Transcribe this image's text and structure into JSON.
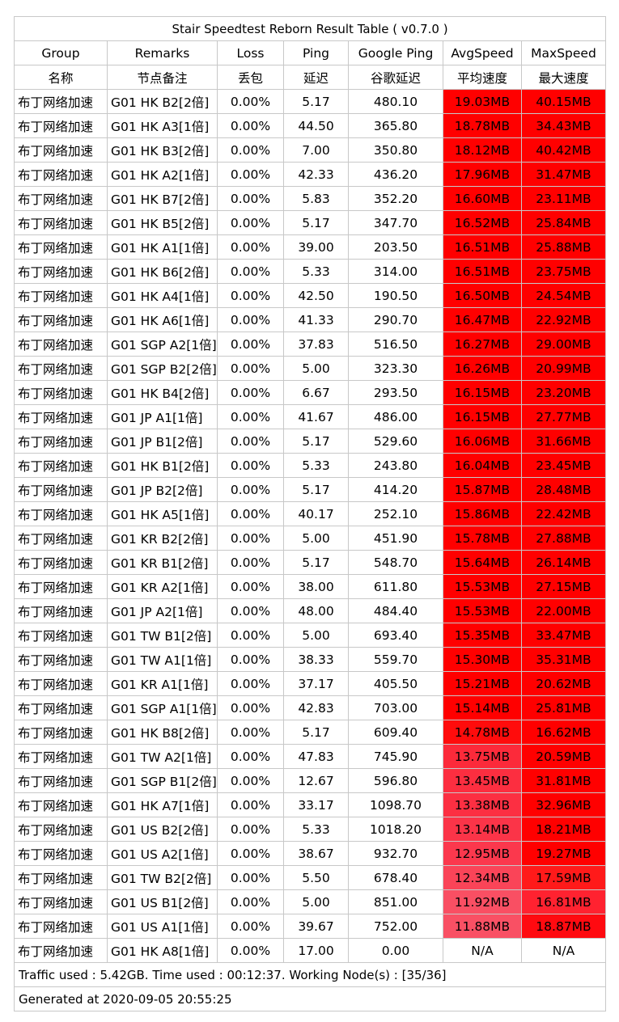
{
  "title": "Stair Speedtest Reborn Result Table ( v0.7.0 )",
  "headers_en": [
    "Group",
    "Remarks",
    "Loss",
    "Ping",
    "Google Ping",
    "AvgSpeed",
    "MaxSpeed"
  ],
  "headers_cn": [
    "名称",
    "节点备注",
    "丢包",
    "延迟",
    "谷歌延迟",
    "平均速度",
    "最大速度"
  ],
  "rows": [
    {
      "group": "布丁网络加速",
      "remarks": "G01 HK B2[2倍]",
      "loss": "0.00%",
      "ping": "5.17",
      "gping": "480.10",
      "avg": "19.03MB",
      "max": "40.15MB",
      "avg_color": "#ff0000",
      "max_color": "#ff0000"
    },
    {
      "group": "布丁网络加速",
      "remarks": "G01 HK A3[1倍]",
      "loss": "0.00%",
      "ping": "44.50",
      "gping": "365.80",
      "avg": "18.78MB",
      "max": "34.43MB",
      "avg_color": "#ff0000",
      "max_color": "#ff0000"
    },
    {
      "group": "布丁网络加速",
      "remarks": "G01 HK B3[2倍]",
      "loss": "0.00%",
      "ping": "7.00",
      "gping": "350.80",
      "avg": "18.12MB",
      "max": "40.42MB",
      "avg_color": "#ff0000",
      "max_color": "#ff0000"
    },
    {
      "group": "布丁网络加速",
      "remarks": "G01 HK A2[1倍]",
      "loss": "0.00%",
      "ping": "42.33",
      "gping": "436.20",
      "avg": "17.96MB",
      "max": "31.47MB",
      "avg_color": "#ff0000",
      "max_color": "#ff0000"
    },
    {
      "group": "布丁网络加速",
      "remarks": "G01 HK B7[2倍]",
      "loss": "0.00%",
      "ping": "5.83",
      "gping": "352.20",
      "avg": "16.60MB",
      "max": "23.11MB",
      "avg_color": "#ff0000",
      "max_color": "#ff0000"
    },
    {
      "group": "布丁网络加速",
      "remarks": "G01 HK B5[2倍]",
      "loss": "0.00%",
      "ping": "5.17",
      "gping": "347.70",
      "avg": "16.52MB",
      "max": "25.84MB",
      "avg_color": "#ff0000",
      "max_color": "#ff0000"
    },
    {
      "group": "布丁网络加速",
      "remarks": "G01 HK A1[1倍]",
      "loss": "0.00%",
      "ping": "39.00",
      "gping": "203.50",
      "avg": "16.51MB",
      "max": "25.88MB",
      "avg_color": "#ff0000",
      "max_color": "#ff0000"
    },
    {
      "group": "布丁网络加速",
      "remarks": "G01 HK B6[2倍]",
      "loss": "0.00%",
      "ping": "5.33",
      "gping": "314.00",
      "avg": "16.51MB",
      "max": "23.75MB",
      "avg_color": "#ff0000",
      "max_color": "#ff0000"
    },
    {
      "group": "布丁网络加速",
      "remarks": "G01 HK A4[1倍]",
      "loss": "0.00%",
      "ping": "42.50",
      "gping": "190.50",
      "avg": "16.50MB",
      "max": "24.54MB",
      "avg_color": "#ff0000",
      "max_color": "#ff0000"
    },
    {
      "group": "布丁网络加速",
      "remarks": "G01 HK A6[1倍]",
      "loss": "0.00%",
      "ping": "41.33",
      "gping": "290.70",
      "avg": "16.47MB",
      "max": "22.92MB",
      "avg_color": "#ff0000",
      "max_color": "#ff0000"
    },
    {
      "group": "布丁网络加速",
      "remarks": "G01 SGP A2[1倍]",
      "loss": "0.00%",
      "ping": "37.83",
      "gping": "516.50",
      "avg": "16.27MB",
      "max": "29.00MB",
      "avg_color": "#ff0000",
      "max_color": "#ff0000"
    },
    {
      "group": "布丁网络加速",
      "remarks": "G01 SGP B2[2倍]",
      "loss": "0.00%",
      "ping": "5.00",
      "gping": "323.30",
      "avg": "16.26MB",
      "max": "20.99MB",
      "avg_color": "#ff0000",
      "max_color": "#ff0000"
    },
    {
      "group": "布丁网络加速",
      "remarks": "G01 HK B4[2倍]",
      "loss": "0.00%",
      "ping": "6.67",
      "gping": "293.50",
      "avg": "16.15MB",
      "max": "23.20MB",
      "avg_color": "#ff0000",
      "max_color": "#ff0000"
    },
    {
      "group": "布丁网络加速",
      "remarks": "G01 JP A1[1倍]",
      "loss": "0.00%",
      "ping": "41.67",
      "gping": "486.00",
      "avg": "16.15MB",
      "max": "27.77MB",
      "avg_color": "#ff0000",
      "max_color": "#ff0000"
    },
    {
      "group": "布丁网络加速",
      "remarks": "G01 JP B1[2倍]",
      "loss": "0.00%",
      "ping": "5.17",
      "gping": "529.60",
      "avg": "16.06MB",
      "max": "31.66MB",
      "avg_color": "#ff0000",
      "max_color": "#ff0000"
    },
    {
      "group": "布丁网络加速",
      "remarks": "G01 HK B1[2倍]",
      "loss": "0.00%",
      "ping": "5.33",
      "gping": "243.80",
      "avg": "16.04MB",
      "max": "23.45MB",
      "avg_color": "#ff0000",
      "max_color": "#ff0000"
    },
    {
      "group": "布丁网络加速",
      "remarks": "G01 JP B2[2倍]",
      "loss": "0.00%",
      "ping": "5.17",
      "gping": "414.20",
      "avg": "15.87MB",
      "max": "28.48MB",
      "avg_color": "#ff0000",
      "max_color": "#ff0000"
    },
    {
      "group": "布丁网络加速",
      "remarks": "G01 HK A5[1倍]",
      "loss": "0.00%",
      "ping": "40.17",
      "gping": "252.10",
      "avg": "15.86MB",
      "max": "22.42MB",
      "avg_color": "#ff0000",
      "max_color": "#ff0000"
    },
    {
      "group": "布丁网络加速",
      "remarks": "G01 KR B2[2倍]",
      "loss": "0.00%",
      "ping": "5.00",
      "gping": "451.90",
      "avg": "15.78MB",
      "max": "27.88MB",
      "avg_color": "#ff0000",
      "max_color": "#ff0000"
    },
    {
      "group": "布丁网络加速",
      "remarks": "G01 KR B1[2倍]",
      "loss": "0.00%",
      "ping": "5.17",
      "gping": "548.70",
      "avg": "15.64MB",
      "max": "26.14MB",
      "avg_color": "#ff0000",
      "max_color": "#ff0000"
    },
    {
      "group": "布丁网络加速",
      "remarks": "G01 KR A2[1倍]",
      "loss": "0.00%",
      "ping": "38.00",
      "gping": "611.80",
      "avg": "15.53MB",
      "max": "27.15MB",
      "avg_color": "#ff0000",
      "max_color": "#ff0000"
    },
    {
      "group": "布丁网络加速",
      "remarks": "G01 JP A2[1倍]",
      "loss": "0.00%",
      "ping": "48.00",
      "gping": "484.40",
      "avg": "15.53MB",
      "max": "22.00MB",
      "avg_color": "#ff0000",
      "max_color": "#ff0000"
    },
    {
      "group": "布丁网络加速",
      "remarks": "G01 TW B1[2倍]",
      "loss": "0.00%",
      "ping": "5.00",
      "gping": "693.40",
      "avg": "15.35MB",
      "max": "33.47MB",
      "avg_color": "#ff0000",
      "max_color": "#ff0000"
    },
    {
      "group": "布丁网络加速",
      "remarks": "G01 TW A1[1倍]",
      "loss": "0.00%",
      "ping": "38.33",
      "gping": "559.70",
      "avg": "15.30MB",
      "max": "35.31MB",
      "avg_color": "#ff0000",
      "max_color": "#ff0000"
    },
    {
      "group": "布丁网络加速",
      "remarks": "G01 KR A1[1倍]",
      "loss": "0.00%",
      "ping": "37.17",
      "gping": "405.50",
      "avg": "15.21MB",
      "max": "20.62MB",
      "avg_color": "#ff0000",
      "max_color": "#ff0000"
    },
    {
      "group": "布丁网络加速",
      "remarks": "G01 SGP A1[1倍]",
      "loss": "0.00%",
      "ping": "42.83",
      "gping": "703.00",
      "avg": "15.14MB",
      "max": "25.81MB",
      "avg_color": "#ff0000",
      "max_color": "#ff0000"
    },
    {
      "group": "布丁网络加速",
      "remarks": "G01 HK B8[2倍]",
      "loss": "0.00%",
      "ping": "5.17",
      "gping": "609.40",
      "avg": "14.78MB",
      "max": "16.62MB",
      "avg_color": "#ff0c0c",
      "max_color": "#ff0000"
    },
    {
      "group": "布丁网络加速",
      "remarks": "G01 TW A2[1倍]",
      "loss": "0.00%",
      "ping": "47.83",
      "gping": "745.90",
      "avg": "13.75MB",
      "max": "20.59MB",
      "avg_color": "#fc2a3a",
      "max_color": "#ff0000"
    },
    {
      "group": "布丁网络加速",
      "remarks": "G01 SGP B1[2倍]",
      "loss": "0.00%",
      "ping": "12.67",
      "gping": "596.80",
      "avg": "13.45MB",
      "max": "31.81MB",
      "avg_color": "#fc2e40",
      "max_color": "#ff0000"
    },
    {
      "group": "布丁网络加速",
      "remarks": "G01 HK A7[1倍]",
      "loss": "0.00%",
      "ping": "33.17",
      "gping": "1098.70",
      "avg": "13.38MB",
      "max": "32.96MB",
      "avg_color": "#fc2f42",
      "max_color": "#ff0000"
    },
    {
      "group": "布丁网络加速",
      "remarks": "G01 US B2[2倍]",
      "loss": "0.00%",
      "ping": "5.33",
      "gping": "1018.20",
      "avg": "13.14MB",
      "max": "18.21MB",
      "avg_color": "#fb3448",
      "max_color": "#ff0000"
    },
    {
      "group": "布丁网络加速",
      "remarks": "G01 US A2[1倍]",
      "loss": "0.00%",
      "ping": "38.67",
      "gping": "932.70",
      "avg": "12.95MB",
      "max": "19.27MB",
      "avg_color": "#fb384d",
      "max_color": "#ff0000"
    },
    {
      "group": "布丁网络加速",
      "remarks": "G01 TW B2[2倍]",
      "loss": "0.00%",
      "ping": "5.50",
      "gping": "678.40",
      "avg": "12.34MB",
      "max": "17.59MB",
      "avg_color": "#fa4458",
      "max_color": "#ff1a1a"
    },
    {
      "group": "布丁网络加速",
      "remarks": "G01 US B1[2倍]",
      "loss": "0.00%",
      "ping": "5.00",
      "gping": "851.00",
      "avg": "11.92MB",
      "max": "16.81MB",
      "avg_color": "#f94f63",
      "max_color": "#ff2230"
    },
    {
      "group": "布丁网络加速",
      "remarks": "G01 US A1[1倍]",
      "loss": "0.00%",
      "ping": "39.67",
      "gping": "752.00",
      "avg": "11.88MB",
      "max": "18.87MB",
      "avg_color": "#f95064",
      "max_color": "#ff0a10"
    },
    {
      "group": "布丁网络加速",
      "remarks": "G01 HK A8[1倍]",
      "loss": "0.00%",
      "ping": "17.00",
      "gping": "0.00",
      "avg": "N/A",
      "max": "N/A",
      "avg_color": "#ffffff",
      "max_color": "#ffffff"
    }
  ],
  "traffic_line": "Traffic used : 5.42GB. Time used : 00:12:37. Working Node(s) : [35/36]",
  "generated_line": "Generated at 2020-09-05 20:55:25",
  "colors": {
    "border": "#c8c8c8",
    "background": "#ffffff",
    "speed_high": "#ff0000",
    "speed_low": "#f95064"
  }
}
